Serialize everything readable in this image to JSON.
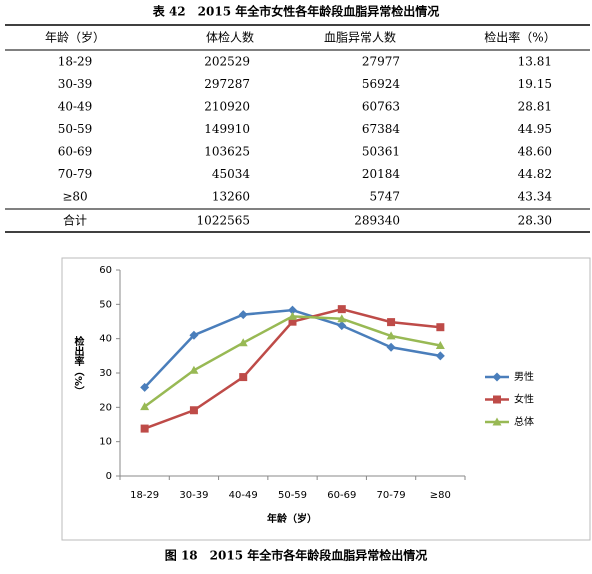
{
  "table": {
    "title": "表 42　2015 年全市女性各年龄段血脂异常检出情况",
    "header": [
      "年龄（岁）",
      "体检人数",
      "血脂异常人数",
      "检出率（%）"
    ],
    "rows": [
      [
        "18-29",
        "202529",
        "27977",
        "13.81"
      ],
      [
        "30-39",
        "297287",
        "56924",
        "19.15"
      ],
      [
        "40-49",
        "210920",
        "60763",
        "28.81"
      ],
      [
        "50-59",
        "149910",
        "67384",
        "44.95"
      ],
      [
        "60-69",
        "103625",
        "50361",
        "48.60"
      ],
      [
        "70-79",
        "45034",
        "20184",
        "44.82"
      ],
      [
        "≥80",
        "13260",
        "5747",
        "43.34"
      ]
    ],
    "total": [
      "合计",
      "1022565",
      "289340",
      "28.30"
    ]
  },
  "chart_data": {
    "type": "line",
    "title": "图 18　2015 年全市各年龄段血脂异常检出情况",
    "x_label": "年龄（岁）",
    "y_label": "检出率（%）",
    "categories": [
      "18-29",
      "30-39",
      "40-49",
      "50-59",
      "60-69",
      "70-79",
      "≥80"
    ],
    "series": [
      {
        "name": "男性",
        "color": "#4a7ebb",
        "marker": "diamond",
        "values": [
          25.8,
          41.0,
          47.0,
          48.3,
          43.8,
          37.5,
          35.0
        ]
      },
      {
        "name": "女性",
        "color": "#be4b48",
        "marker": "square",
        "values": [
          13.81,
          19.15,
          28.81,
          44.95,
          48.6,
          44.82,
          43.34
        ]
      },
      {
        "name": "总体",
        "color": "#98b954",
        "marker": "triangle",
        "values": [
          20.2,
          30.8,
          38.8,
          46.5,
          45.8,
          40.8,
          38.0
        ]
      }
    ],
    "ylim": [
      0,
      60
    ],
    "yticks": [
      0,
      10,
      20,
      30,
      40,
      50,
      60
    ],
    "legend": "right"
  }
}
